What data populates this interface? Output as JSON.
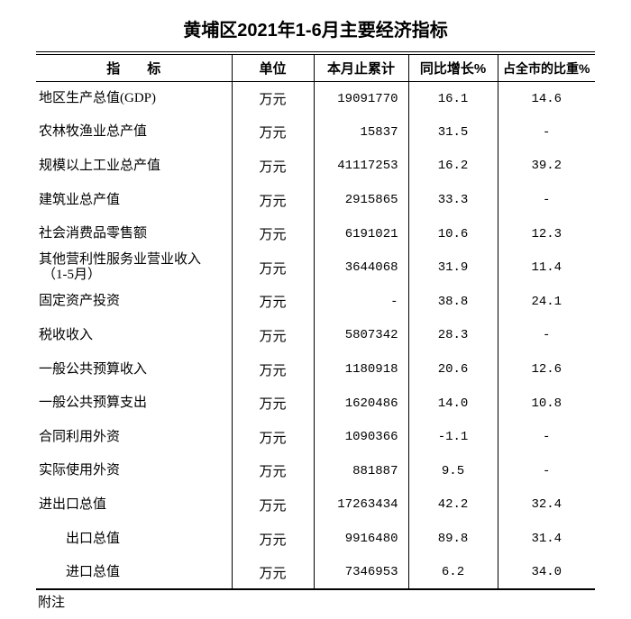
{
  "title": "黄埔区2021年1-6月主要经济指标",
  "footnote": "附注",
  "table": {
    "headers": {
      "indicator": "指　　标",
      "unit": "单位",
      "cumulative": "本月止累计",
      "yoy": "同比增长%",
      "share": "占全市的比重%"
    },
    "rows": [
      {
        "indicator": "地区生产总值(GDP)",
        "indicator_line2": "",
        "unit": "万元",
        "cumulative": "19091770",
        "yoy": "16.1",
        "share": "14.6",
        "indent": false
      },
      {
        "indicator": "农林牧渔业总产值",
        "indicator_line2": "",
        "unit": "万元",
        "cumulative": "15837",
        "yoy": "31.5",
        "share": "-",
        "indent": false
      },
      {
        "indicator": "规模以上工业总产值",
        "indicator_line2": "",
        "unit": "万元",
        "cumulative": "41117253",
        "yoy": "16.2",
        "share": "39.2",
        "indent": false
      },
      {
        "indicator": "建筑业总产值",
        "indicator_line2": "",
        "unit": "万元",
        "cumulative": "2915865",
        "yoy": "33.3",
        "share": "-",
        "indent": false
      },
      {
        "indicator": "社会消费品零售额",
        "indicator_line2": "",
        "unit": "万元",
        "cumulative": "6191021",
        "yoy": "10.6",
        "share": "12.3",
        "indent": false
      },
      {
        "indicator": "其他营利性服务业营业收入",
        "indicator_line2": "（1-5月）",
        "unit": "万元",
        "cumulative": "3644068",
        "yoy": "31.9",
        "share": "11.4",
        "indent": false
      },
      {
        "indicator": "固定资产投资",
        "indicator_line2": "",
        "unit": "万元",
        "cumulative": "-",
        "yoy": "38.8",
        "share": "24.1",
        "indent": false
      },
      {
        "indicator": "税收收入",
        "indicator_line2": "",
        "unit": "万元",
        "cumulative": "5807342",
        "yoy": "28.3",
        "share": "-",
        "indent": false
      },
      {
        "indicator": "一般公共预算收入",
        "indicator_line2": "",
        "unit": "万元",
        "cumulative": "1180918",
        "yoy": "20.6",
        "share": "12.6",
        "indent": false
      },
      {
        "indicator": "一般公共预算支出",
        "indicator_line2": "",
        "unit": "万元",
        "cumulative": "1620486",
        "yoy": "14.0",
        "share": "10.8",
        "indent": false
      },
      {
        "indicator": "合同利用外资",
        "indicator_line2": "",
        "unit": "万元",
        "cumulative": "1090366",
        "yoy": "-1.1",
        "share": "-",
        "indent": false
      },
      {
        "indicator": "实际使用外资",
        "indicator_line2": "",
        "unit": "万元",
        "cumulative": "881887",
        "yoy": "9.5",
        "share": "-",
        "indent": false
      },
      {
        "indicator": "进出口总值",
        "indicator_line2": "",
        "unit": "万元",
        "cumulative": "17263434",
        "yoy": "42.2",
        "share": "32.4",
        "indent": false
      },
      {
        "indicator": "出口总值",
        "indicator_line2": "",
        "unit": "万元",
        "cumulative": "9916480",
        "yoy": "89.8",
        "share": "31.4",
        "indent": true
      },
      {
        "indicator": "进口总值",
        "indicator_line2": "",
        "unit": "万元",
        "cumulative": "7346953",
        "yoy": "6.2",
        "share": "34.0",
        "indent": true
      }
    ]
  }
}
